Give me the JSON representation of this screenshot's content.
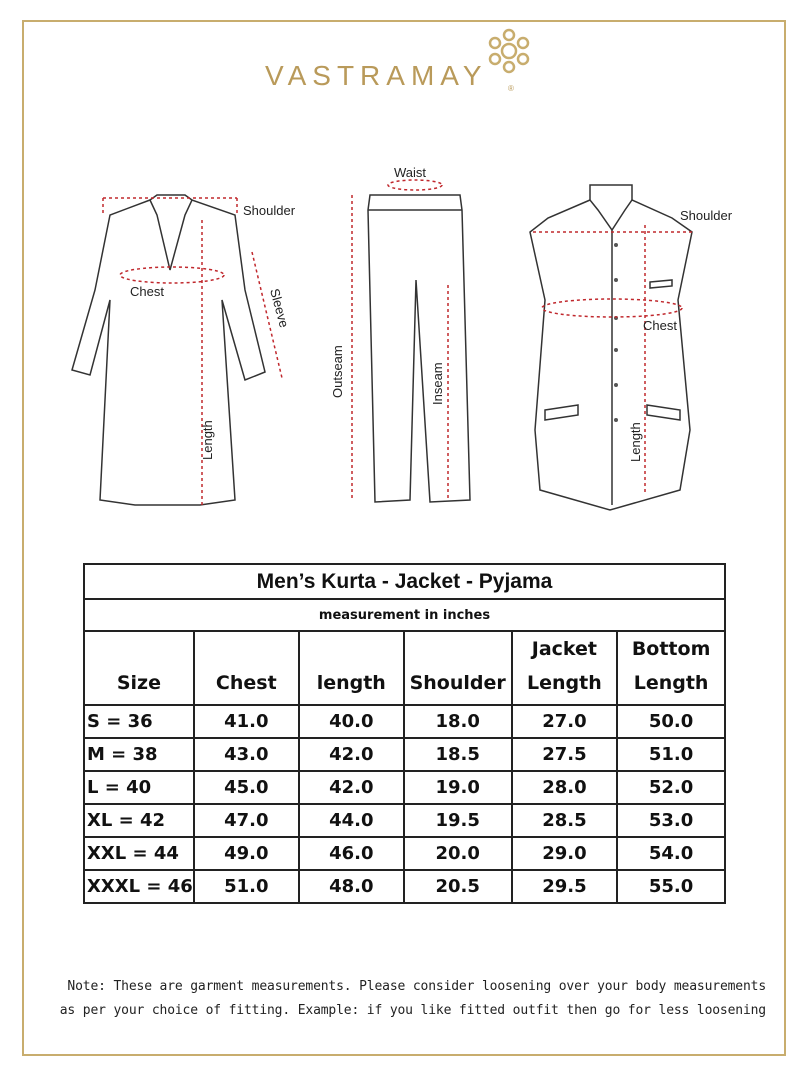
{
  "brand": {
    "name": "VASTRAMAY",
    "registered": "®",
    "color": "#b99a5a"
  },
  "diagram_labels": {
    "kurta": {
      "shoulder": "Shoulder",
      "chest": "Chest",
      "sleeve": "Sleeve",
      "length": "Length"
    },
    "pyjama": {
      "waist": "Waist",
      "outseam": "Outseam",
      "inseam": "Inseam"
    },
    "jacket": {
      "shoulder": "Shoulder",
      "chest": "Chest",
      "length": "Length"
    }
  },
  "table": {
    "title": "Men’s Kurta - Jacket - Pyjama",
    "subtitle": "measurement in inches",
    "headers": [
      [
        "",
        "Size"
      ],
      [
        "",
        "Chest"
      ],
      [
        "",
        "length"
      ],
      [
        "",
        "Shoulder"
      ],
      [
        "Jacket",
        "Length"
      ],
      [
        "Bottom",
        "Length"
      ]
    ],
    "rows": [
      [
        "S = 36",
        "41.0",
        "40.0",
        "18.0",
        "27.0",
        "50.0"
      ],
      [
        "M = 38",
        "43.0",
        "42.0",
        "18.5",
        "27.5",
        "51.0"
      ],
      [
        "L = 40",
        "45.0",
        "42.0",
        "19.0",
        "28.0",
        "52.0"
      ],
      [
        "XL = 42",
        "47.0",
        "44.0",
        "19.5",
        "28.5",
        "53.0"
      ],
      [
        "XXL = 44",
        "49.0",
        "46.0",
        "20.0",
        "29.0",
        "54.0"
      ],
      [
        "XXXL = 46",
        "51.0",
        "48.0",
        "20.5",
        "29.5",
        "55.0"
      ]
    ]
  },
  "note": {
    "line1": "Note: These are garment measurements. Please consider loosening over your body measurements",
    "line2": "as per your choice of fitting. Example: if you like fitted outfit then go for less loosening"
  },
  "colors": {
    "frame": "#c8ad6e",
    "measure_line": "#c0282d"
  }
}
